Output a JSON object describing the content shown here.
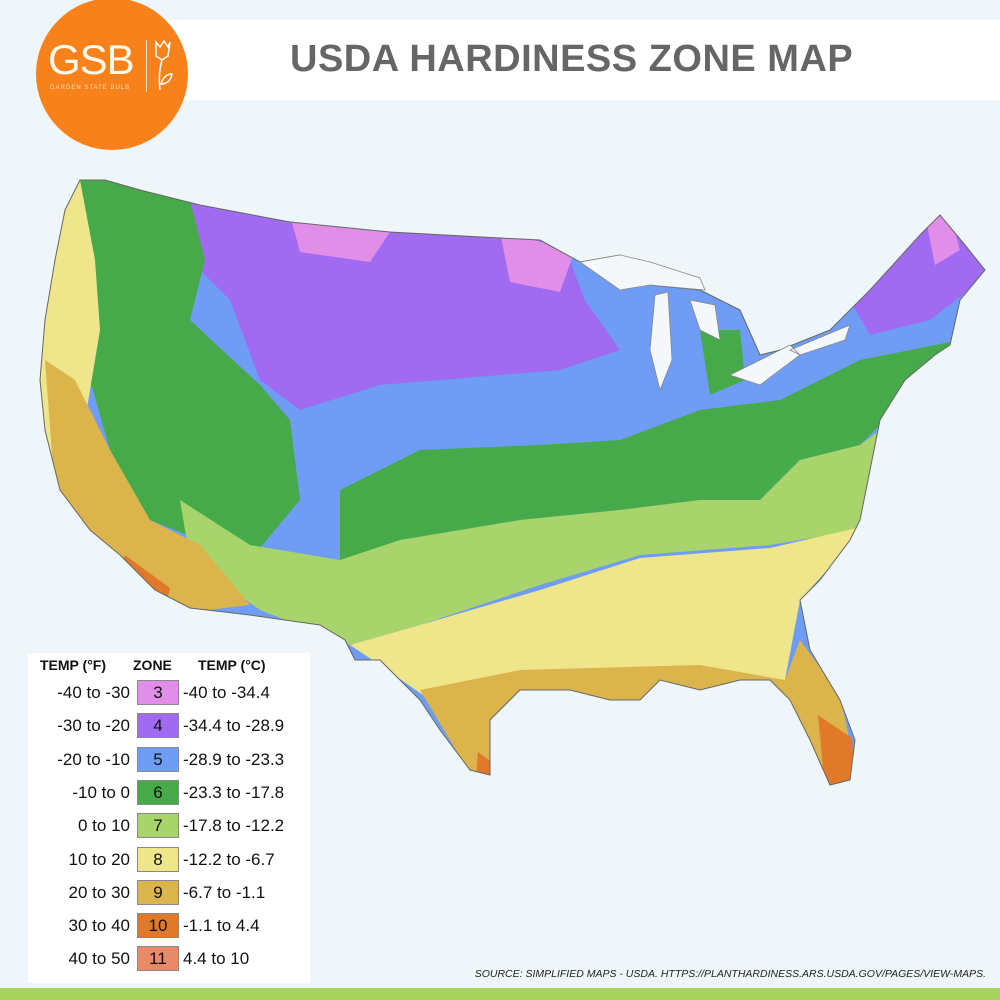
{
  "header": {
    "title": "USDA HARDINESS ZONE MAP"
  },
  "logo": {
    "text": "GSB",
    "subtitle": "GARDEN STATE BULB",
    "color": "#f7821b"
  },
  "legend": {
    "headers": {
      "temp_f": "TEMP (°F)",
      "zone": "ZONE",
      "temp_c": "TEMP (°C)"
    },
    "rows": [
      {
        "temp_f": "-40 to -30",
        "zone": "3",
        "temp_c": "-40 to -34.4",
        "color": "#e08ee8"
      },
      {
        "temp_f": "-30 to -20",
        "zone": "4",
        "temp_c": "-34.4 to -28.9",
        "color": "#a06bf0"
      },
      {
        "temp_f": "-20 to -10",
        "zone": "5",
        "temp_c": "-28.9 to -23.3",
        "color": "#6f9cf5"
      },
      {
        "temp_f": "-10 to 0",
        "zone": "6",
        "temp_c": "-23.3 to -17.8",
        "color": "#46aa4a"
      },
      {
        "temp_f": "0 to 10",
        "zone": "7",
        "temp_c": "-17.8 to -12.2",
        "color": "#a9d46c"
      },
      {
        "temp_f": "10 to 20",
        "zone": "8",
        "temp_c": "-12.2 to -6.7",
        "color": "#efe68c"
      },
      {
        "temp_f": "20 to 30",
        "zone": "9",
        "temp_c": "-6.7 to -1.1",
        "color": "#dcb44c"
      },
      {
        "temp_f": "30 to 40",
        "zone": "10",
        "temp_c": "-1.1 to 4.4",
        "color": "#e0792a"
      },
      {
        "temp_f": "40 to 50",
        "zone": "11",
        "temp_c": "4.4 to 10",
        "color": "#e88a6a"
      }
    ]
  },
  "source": "SOURCE: SIMPLIFIED MAPS - USDA. HTTPS://PLANTHARDINESS.ARS.USDA.GOV/PAGES/VIEW-MAPS."
}
